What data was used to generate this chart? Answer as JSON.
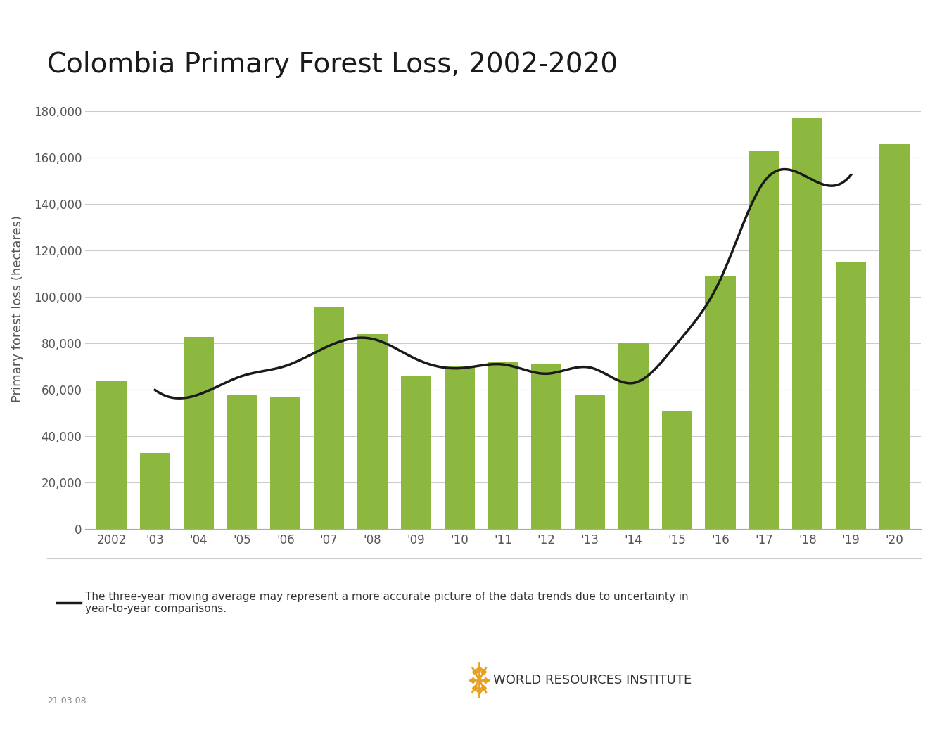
{
  "years": [
    2002,
    2003,
    2004,
    2005,
    2006,
    2007,
    2008,
    2009,
    2010,
    2011,
    2012,
    2013,
    2014,
    2015,
    2016,
    2017,
    2018,
    2019,
    2020
  ],
  "values": [
    64000,
    33000,
    83000,
    58000,
    57000,
    96000,
    84000,
    66000,
    70000,
    72000,
    71000,
    58000,
    80000,
    51000,
    109000,
    163000,
    177000,
    115000,
    166000
  ],
  "bar_color": "#8db840",
  "line_color": "#1a1a1a",
  "title": "Colombia Primary Forest Loss, 2002-2020",
  "ylabel": "Primary forest loss (hectares)",
  "ylim": [
    0,
    190000
  ],
  "yticks": [
    0,
    20000,
    40000,
    60000,
    80000,
    100000,
    120000,
    140000,
    160000,
    180000
  ],
  "background_color": "#ffffff",
  "legend_text": "The three-year moving average may represent a more accurate picture of the data trends due to uncertainty in\nyear-to-year comparisons.",
  "watermark": "21.03.08",
  "title_fontsize": 28,
  "ylabel_fontsize": 13,
  "tick_fontsize": 12
}
